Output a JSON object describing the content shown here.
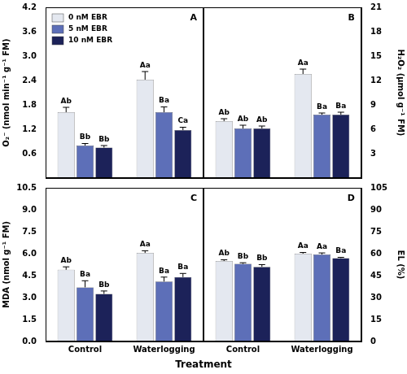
{
  "figure": {
    "x_label": "Treatment"
  },
  "chart_data": [
    {
      "type": "bar",
      "title": "A",
      "y_label": "O₂⁻ (nmol min⁻¹ g⁻¹ FM)",
      "categories": [
        "Control",
        "Waterlogging"
      ],
      "series": [
        {
          "name": "0 nM EBR",
          "color": "#e4e8f0",
          "values": [
            1.62,
            2.42
          ],
          "errors": [
            0.12,
            0.2
          ],
          "annotations": [
            "Ab",
            "Aa"
          ]
        },
        {
          "name": "5 nM EBR",
          "color": "#5d6fb8",
          "values": [
            0.8,
            1.62
          ],
          "errors": [
            0.05,
            0.13
          ],
          "annotations": [
            "Bb",
            "Ba"
          ]
        },
        {
          "name": "10 nM EBR",
          "color": "#1c2259",
          "values": [
            0.75,
            1.18
          ],
          "errors": [
            0.05,
            0.07
          ],
          "annotations": [
            "Bb",
            "Ca"
          ]
        }
      ],
      "ylim": [
        0,
        4.2
      ],
      "yticks": [
        0.6,
        1.2,
        1.8,
        2.4,
        {
          "value": 3,
          "label": "3.0"
        },
        3.6,
        4.2
      ],
      "grid": false,
      "legend": "top-left",
      "tick_labels": "y"
    },
    {
      "type": "bar",
      "title": "B",
      "y_label": "H₂O₂ (μmol g⁻¹ FM)",
      "categories": [
        "Control",
        "Waterlogging"
      ],
      "series": [
        {
          "name": "0 nM EBR",
          "color": "#e4e8f0",
          "values": [
            7.0,
            12.8
          ],
          "errors": [
            0.3,
            0.6
          ],
          "annotations": [
            "Ab",
            "Aa"
          ]
        },
        {
          "name": "5 nM EBR",
          "color": "#5d6fb8",
          "values": [
            6.1,
            7.8
          ],
          "errors": [
            0.4,
            0.2
          ],
          "annotations": [
            "Ab",
            "Ba"
          ]
        },
        {
          "name": "10 nM EBR",
          "color": "#1c2259",
          "values": [
            6.1,
            7.8
          ],
          "errors": [
            0.3,
            0.3
          ],
          "annotations": [
            "Ab",
            "Ba"
          ]
        }
      ],
      "ylim": [
        0,
        21
      ],
      "yticks": [
        3,
        6,
        9,
        12,
        15,
        18,
        21
      ],
      "grid": false,
      "tick_labels": "y"
    },
    {
      "type": "bar",
      "title": "C",
      "y_label": "MDA (nmol g⁻¹ FM)",
      "categories": [
        "Control",
        "Waterlogging"
      ],
      "series": [
        {
          "name": "0 nM EBR",
          "color": "#e4e8f0",
          "values": [
            4.9,
            6.05
          ],
          "errors": [
            0.2,
            0.15
          ],
          "annotations": [
            "Ab",
            "Aa"
          ]
        },
        {
          "name": "5 nM EBR",
          "color": "#5d6fb8",
          "values": [
            3.7,
            4.1
          ],
          "errors": [
            0.45,
            0.3
          ],
          "annotations": [
            "Ba",
            "Ba"
          ]
        },
        {
          "name": "10 nM EBR",
          "color": "#1c2259",
          "values": [
            3.25,
            4.4
          ],
          "errors": [
            0.2,
            0.25
          ],
          "annotations": [
            "Bb",
            "Ba"
          ]
        }
      ],
      "ylim": [
        0,
        10.5
      ],
      "yticks": [
        {
          "value": 0,
          "label": "0.0"
        },
        1.5,
        {
          "value": 3,
          "label": "3.0"
        },
        4.5,
        {
          "value": 6,
          "label": "6.0"
        },
        7.5,
        {
          "value": 9,
          "label": "9.0"
        },
        10.5
      ],
      "grid": false
    },
    {
      "type": "bar",
      "title": "D",
      "y_label": "EL (%)",
      "categories": [
        "Control",
        "Waterlogging"
      ],
      "series": [
        {
          "name": "0 nM EBR",
          "color": "#e4e8f0",
          "values": [
            55,
            60
          ],
          "errors": [
            0.8,
            0.8
          ],
          "annotations": [
            "Ab",
            "Aa"
          ]
        },
        {
          "name": "5 nM EBR",
          "color": "#5d6fb8",
          "values": [
            53,
            59.5
          ],
          "errors": [
            0.8,
            1
          ],
          "annotations": [
            "Bb",
            "Aa"
          ]
        },
        {
          "name": "10 nM EBR",
          "color": "#1c2259",
          "values": [
            51,
            57
          ],
          "errors": [
            1.5,
            0.5
          ],
          "annotations": [
            "Bb",
            "Ba"
          ]
        }
      ],
      "ylim": [
        0,
        105
      ],
      "yticks": [
        0,
        15,
        30,
        45,
        60,
        75,
        90,
        105
      ],
      "grid": false
    }
  ]
}
